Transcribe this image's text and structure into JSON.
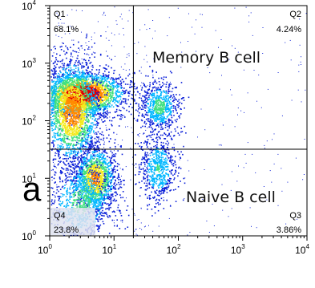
{
  "chart_data": {
    "type": "scatter",
    "title": "",
    "xlabel": "",
    "ylabel": "",
    "xscale": "log",
    "yscale": "log",
    "xlim": [
      1,
      10000
    ],
    "ylim": [
      1,
      10000
    ],
    "x_ticks": [
      {
        "base": "10",
        "exp": "0"
      },
      {
        "base": "10",
        "exp": "1"
      },
      {
        "base": "10",
        "exp": "2"
      },
      {
        "base": "10",
        "exp": "3"
      },
      {
        "base": "10",
        "exp": "4"
      }
    ],
    "y_ticks": [
      {
        "base": "10",
        "exp": "0"
      },
      {
        "base": "10",
        "exp": "1"
      },
      {
        "base": "10",
        "exp": "2"
      },
      {
        "base": "10",
        "exp": "3"
      },
      {
        "base": "10",
        "exp": "4"
      }
    ],
    "gate": {
      "x": 20,
      "y": 32
    },
    "quadrants": [
      {
        "name": "Q1",
        "percent": "68.1%"
      },
      {
        "name": "Q2",
        "percent": "4.24%"
      },
      {
        "name": "Q3",
        "percent": "3.86%"
      },
      {
        "name": "Q4",
        "percent": "23.8%"
      }
    ],
    "populations": [
      {
        "label": "Memory B cell"
      },
      {
        "label": "Naive B cell"
      }
    ],
    "side_label": "a",
    "density_colors": [
      "#0a1fd8",
      "#00b7ff",
      "#40e080",
      "#f3e91c",
      "#ff8a00",
      "#e00000"
    ],
    "clusters": [
      {
        "cx": 3.2,
        "cy": 300,
        "sx": 0.32,
        "sy": 0.18,
        "n": 2600,
        "peak": 1.0
      },
      {
        "cx": 2.2,
        "cy": 150,
        "sx": 0.22,
        "sy": 0.45,
        "n": 2200,
        "peak": 0.7
      },
      {
        "cx": 5.0,
        "cy": 10,
        "sx": 0.16,
        "sy": 0.28,
        "n": 1500,
        "peak": 0.65
      },
      {
        "cx": 3.0,
        "cy": 4,
        "sx": 0.25,
        "sy": 0.35,
        "n": 900,
        "peak": 0.35
      },
      {
        "cx": 50,
        "cy": 180,
        "sx": 0.15,
        "sy": 0.22,
        "n": 700,
        "peak": 0.35
      },
      {
        "cx": 48,
        "cy": 15,
        "sx": 0.14,
        "sy": 0.3,
        "n": 650,
        "peak": 0.3
      }
    ]
  }
}
